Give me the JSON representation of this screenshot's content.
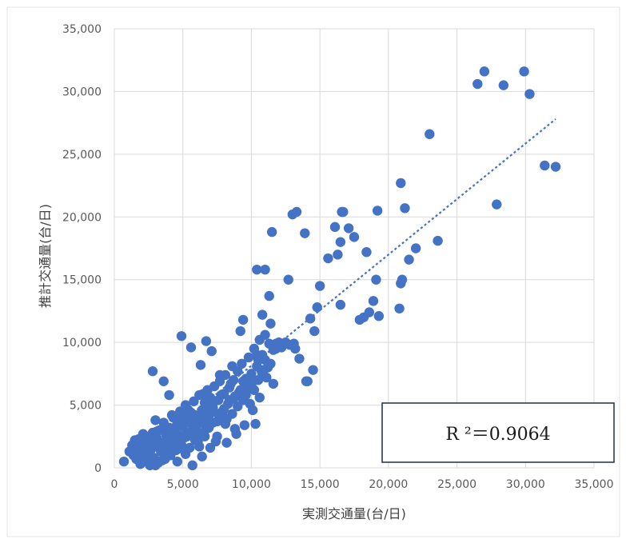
{
  "chart_data": {
    "type": "scatter",
    "xlabel": "実測交通量(台/日)",
    "ylabel": "推計交通量(台/日)",
    "xlim": [
      0,
      35000
    ],
    "ylim": [
      0,
      35000
    ],
    "x_ticks": [
      "0",
      "5,000",
      "10,000",
      "15,000",
      "20,000",
      "25,000",
      "30,000",
      "35,000"
    ],
    "y_ticks": [
      "0",
      "5,000",
      "10,000",
      "15,000",
      "20,000",
      "25,000",
      "30,000",
      "35,000"
    ],
    "grid": true,
    "colors": {
      "points": "#4472C4",
      "trendline": "#4472C4",
      "grid": "#d9d9d9",
      "box_border": "#1f2d4f"
    },
    "annotation": "R ²＝0.9064",
    "trendline": {
      "type": "linear",
      "from": [
        2500,
        1500
      ],
      "to": [
        32200,
        27800
      ]
    },
    "points": [
      [
        700,
        500
      ],
      [
        1100,
        1300
      ],
      [
        1300,
        1800
      ],
      [
        1400,
        1000
      ],
      [
        1500,
        2100
      ],
      [
        1600,
        700
      ],
      [
        1700,
        1500
      ],
      [
        1800,
        2300
      ],
      [
        1900,
        300
      ],
      [
        2000,
        1200
      ],
      [
        2100,
        1800
      ],
      [
        2200,
        600
      ],
      [
        2300,
        2500
      ],
      [
        2400,
        1000
      ],
      [
        2500,
        2000
      ],
      [
        2600,
        200
      ],
      [
        2700,
        1500
      ],
      [
        2800,
        2800
      ],
      [
        2900,
        800
      ],
      [
        3000,
        1700
      ],
      [
        3100,
        2400
      ],
      [
        3200,
        400
      ],
      [
        3300,
        3000
      ],
      [
        3400,
        1300
      ],
      [
        3500,
        2000
      ],
      [
        3600,
        3600
      ],
      [
        3700,
        700
      ],
      [
        3800,
        2600
      ],
      [
        3900,
        1800
      ],
      [
        4000,
        3200
      ],
      [
        4100,
        1000
      ],
      [
        4200,
        4200
      ],
      [
        4300,
        2200
      ],
      [
        4400,
        3000
      ],
      [
        4500,
        1400
      ],
      [
        4600,
        3800
      ],
      [
        4700,
        2600
      ],
      [
        4800,
        4500
      ],
      [
        4900,
        1800
      ],
      [
        5000,
        3300
      ],
      [
        5100,
        2400
      ],
      [
        5200,
        5000
      ],
      [
        5300,
        2800
      ],
      [
        5400,
        3800
      ],
      [
        5500,
        1600
      ],
      [
        5600,
        4400
      ],
      [
        5700,
        3000
      ],
      [
        5800,
        5300
      ],
      [
        5900,
        2200
      ],
      [
        6000,
        4000
      ],
      [
        6100,
        3500
      ],
      [
        6200,
        5800
      ],
      [
        6300,
        2700
      ],
      [
        6400,
        4600
      ],
      [
        6500,
        3900
      ],
      [
        6600,
        5200
      ],
      [
        6700,
        3100
      ],
      [
        6800,
        6200
      ],
      [
        6900,
        4200
      ],
      [
        7000,
        5600
      ],
      [
        7200,
        4800
      ],
      [
        7300,
        6500
      ],
      [
        7500,
        3700
      ],
      [
        7600,
        5400
      ],
      [
        7700,
        6900
      ],
      [
        7900,
        4500
      ],
      [
        8000,
        5900
      ],
      [
        8100,
        7400
      ],
      [
        8300,
        5100
      ],
      [
        8400,
        6400
      ],
      [
        8600,
        4300
      ],
      [
        8700,
        7000
      ],
      [
        8800,
        5700
      ],
      [
        9000,
        7700
      ],
      [
        9100,
        6000
      ],
      [
        9300,
        8300
      ],
      [
        9400,
        5400
      ],
      [
        9600,
        7100
      ],
      [
        9700,
        6600
      ],
      [
        9800,
        8800
      ],
      [
        10000,
        7500
      ],
      [
        10100,
        6300
      ],
      [
        10200,
        9500
      ],
      [
        10300,
        3500
      ],
      [
        10400,
        8100
      ],
      [
        10500,
        7000
      ],
      [
        10600,
        10200
      ],
      [
        10700,
        8700
      ],
      [
        10800,
        9000
      ],
      [
        10900,
        7800
      ],
      [
        11000,
        10600
      ],
      [
        11200,
        8000
      ],
      [
        11400,
        11500
      ],
      [
        11600,
        6700
      ],
      [
        11800,
        9900
      ],
      [
        2800,
        7700
      ],
      [
        3600,
        6900
      ],
      [
        4000,
        5800
      ],
      [
        4900,
        10500
      ],
      [
        5600,
        9600
      ],
      [
        6300,
        8200
      ],
      [
        6700,
        10100
      ],
      [
        7100,
        9300
      ],
      [
        7700,
        7400
      ],
      [
        8600,
        8100
      ],
      [
        9200,
        10900
      ],
      [
        9400,
        11800
      ],
      [
        10400,
        15800
      ],
      [
        10800,
        12200
      ],
      [
        11000,
        15800
      ],
      [
        11300,
        13700
      ],
      [
        11500,
        18800
      ],
      [
        12300,
        9900
      ],
      [
        12700,
        15000
      ],
      [
        13000,
        20200
      ],
      [
        13300,
        20400
      ],
      [
        13500,
        8700
      ],
      [
        13900,
        18700
      ],
      [
        14100,
        6900
      ],
      [
        14300,
        11900
      ],
      [
        14500,
        7800
      ],
      [
        14800,
        12800
      ],
      [
        15000,
        14500
      ],
      [
        15600,
        16700
      ],
      [
        16100,
        19200
      ],
      [
        16300,
        17000
      ],
      [
        16500,
        18000
      ],
      [
        16500,
        13000
      ],
      [
        16600,
        20400
      ],
      [
        16700,
        20400
      ],
      [
        17100,
        19100
      ],
      [
        17500,
        18400
      ],
      [
        17900,
        11800
      ],
      [
        18200,
        12000
      ],
      [
        18400,
        17200
      ],
      [
        18600,
        12400
      ],
      [
        18900,
        13300
      ],
      [
        19100,
        15000
      ],
      [
        19200,
        20500
      ],
      [
        19300,
        12100
      ],
      [
        20800,
        12700
      ],
      [
        20900,
        14700
      ],
      [
        20900,
        22700
      ],
      [
        21000,
        15000
      ],
      [
        21200,
        20700
      ],
      [
        21500,
        16600
      ],
      [
        22000,
        17500
      ],
      [
        23000,
        26600
      ],
      [
        23600,
        18100
      ],
      [
        26500,
        30600
      ],
      [
        27000,
        31600
      ],
      [
        27900,
        21000
      ],
      [
        28400,
        30500
      ],
      [
        29900,
        31600
      ],
      [
        30300,
        29800
      ],
      [
        31400,
        24100
      ],
      [
        32200,
        24000
      ],
      [
        1500,
        2200
      ],
      [
        2000,
        400
      ],
      [
        2500,
        900
      ],
      [
        3000,
        200
      ],
      [
        3500,
        600
      ],
      [
        4200,
        1500
      ],
      [
        4600,
        500
      ],
      [
        5200,
        1100
      ],
      [
        5700,
        200
      ],
      [
        6100,
        2100
      ],
      [
        6400,
        900
      ],
      [
        7000,
        1600
      ],
      [
        7500,
        2500
      ],
      [
        8200,
        2000
      ],
      [
        8800,
        3100
      ],
      [
        9500,
        3400
      ],
      [
        10100,
        4600
      ],
      [
        2300,
        1100
      ],
      [
        3100,
        2900
      ],
      [
        3800,
        1200
      ],
      [
        4400,
        2400
      ],
      [
        5000,
        1500
      ],
      [
        5400,
        4600
      ],
      [
        6000,
        3000
      ],
      [
        6600,
        2500
      ],
      [
        7200,
        3600
      ],
      [
        7800,
        4100
      ],
      [
        8400,
        5400
      ],
      [
        9000,
        4900
      ],
      [
        9600,
        5800
      ],
      [
        10200,
        6200
      ],
      [
        10800,
        7500
      ],
      [
        11400,
        8300
      ],
      [
        12000,
        10000
      ],
      [
        12800,
        9800
      ],
      [
        13200,
        9500
      ],
      [
        14000,
        6900
      ],
      [
        14600,
        10900
      ],
      [
        3300,
        500
      ],
      [
        4100,
        2100
      ],
      [
        5500,
        2800
      ],
      [
        6200,
        1700
      ],
      [
        6900,
        3200
      ],
      [
        7400,
        2100
      ],
      [
        8100,
        3500
      ],
      [
        8900,
        2700
      ],
      [
        9900,
        5100
      ],
      [
        10600,
        5600
      ],
      [
        11100,
        7200
      ],
      [
        4800,
        3600
      ],
      [
        5300,
        2500
      ],
      [
        5900,
        4200
      ],
      [
        6500,
        5900
      ],
      [
        7100,
        4400
      ],
      [
        7800,
        5800
      ],
      [
        8500,
        6700
      ],
      [
        9200,
        6200
      ],
      [
        9800,
        7100
      ],
      [
        10400,
        9000
      ],
      [
        11000,
        8600
      ],
      [
        11600,
        9400
      ],
      [
        12200,
        9600
      ],
      [
        4700,
        1900
      ],
      [
        3400,
        1700
      ],
      [
        2900,
        2300
      ],
      [
        2600,
        1300
      ],
      [
        2100,
        2700
      ],
      [
        1800,
        900
      ],
      [
        3700,
        3300
      ],
      [
        4300,
        4000
      ],
      [
        5100,
        4200
      ],
      [
        5800,
        3400
      ],
      [
        6800,
        4900
      ],
      [
        7300,
        5300
      ],
      [
        8000,
        4700
      ],
      [
        8700,
        5500
      ],
      [
        9400,
        6900
      ],
      [
        10000,
        6600
      ],
      [
        10700,
        7800
      ],
      [
        11300,
        9900
      ],
      [
        12500,
        10000
      ],
      [
        13100,
        9900
      ],
      [
        3000,
        3800
      ],
      [
        3900,
        2500
      ],
      [
        4500,
        3300
      ],
      [
        5300,
        3600
      ],
      [
        6100,
        2800
      ],
      [
        6600,
        3700
      ],
      [
        7600,
        4300
      ],
      [
        8200,
        3900
      ],
      [
        9700,
        6200
      ],
      [
        10500,
        8600
      ],
      [
        11800,
        9500
      ]
    ]
  }
}
